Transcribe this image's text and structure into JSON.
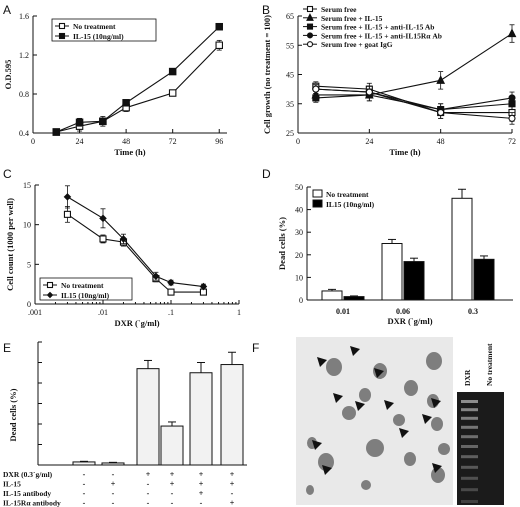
{
  "chart_data": [
    {
      "panel": "A",
      "type": "line",
      "xlabel": "Time (h)",
      "ylabel": "O.D.595",
      "xlim": [
        0,
        100
      ],
      "ylim": [
        0.4,
        1.6
      ],
      "xticks": [
        0,
        24,
        48,
        72,
        96
      ],
      "yticks": [
        0.4,
        0.8,
        1.2,
        1.6
      ],
      "legend": "top-left",
      "series": [
        {
          "name": "No treatment",
          "x": [
            12,
            24,
            36,
            48,
            72,
            96
          ],
          "y": [
            0.41,
            0.47,
            0.52,
            0.66,
            0.81,
            1.3
          ],
          "err": [
            0.03,
            0.05,
            0.05,
            0.04,
            0.03,
            0.05
          ],
          "marker": "open-square"
        },
        {
          "name": "IL-15 (10ng/ml)",
          "x": [
            12,
            24,
            36,
            48,
            72,
            96
          ],
          "y": [
            0.41,
            0.51,
            0.52,
            0.71,
            1.03,
            1.49
          ],
          "err": [
            0.03,
            0.04,
            0.03,
            0.03,
            0.02,
            0.03
          ],
          "marker": "filled-square"
        }
      ]
    },
    {
      "panel": "B",
      "type": "line",
      "xlabel": "Time (h)",
      "ylabel": "Cell growth (no treatment = 100)",
      "xlim": [
        0,
        72
      ],
      "ylim": [
        25,
        65
      ],
      "xticks": [
        0,
        24,
        48,
        72
      ],
      "yticks": [
        25,
        35,
        45,
        55,
        65
      ],
      "legend": "top-left",
      "series": [
        {
          "name": "Serum free",
          "x": [
            6,
            24,
            48,
            72
          ],
          "y": [
            41,
            40,
            32,
            32
          ],
          "err": [
            1.5,
            2,
            2,
            3
          ],
          "marker": "open-square"
        },
        {
          "name": "Serum free + IL-15",
          "x": [
            6,
            24,
            48,
            72
          ],
          "y": [
            38,
            38,
            43,
            59
          ],
          "err": [
            1.5,
            2,
            3,
            3
          ],
          "marker": "filled-triangle"
        },
        {
          "name": "Serum free + IL-15 + anti-IL-15 Ab",
          "x": [
            6,
            24,
            48,
            72
          ],
          "y": [
            37,
            38,
            33,
            35
          ],
          "err": [
            1.5,
            2,
            2,
            2
          ],
          "marker": "filled-square"
        },
        {
          "name": "Serum free + IL-15 + anti-IL15Rα Ab",
          "x": [
            6,
            24,
            48,
            72
          ],
          "y": [
            40,
            39,
            33,
            37
          ],
          "err": [
            1.5,
            2,
            2,
            2
          ],
          "marker": "filled-circle"
        },
        {
          "name": "Serum free + goat IgG",
          "x": [
            6,
            24,
            48,
            72
          ],
          "y": [
            40,
            39,
            32,
            30
          ],
          "err": [
            1.5,
            2,
            2,
            2
          ],
          "marker": "open-circle"
        }
      ]
    },
    {
      "panel": "C",
      "type": "line",
      "xscale": "log",
      "xlabel": "DXR (`g/ml)",
      "ylabel": "Cell count (1000 per well)",
      "xlim": [
        0.001,
        1
      ],
      "ylim": [
        0,
        15
      ],
      "xticklabels": [
        ".001",
        ".01",
        ".1",
        "1"
      ],
      "yticks": [
        0,
        5,
        10,
        15
      ],
      "legend": "bottom-left",
      "series": [
        {
          "name": "No treatment",
          "x": [
            0.003,
            0.01,
            0.02,
            0.06,
            0.1,
            0.3
          ],
          "y": [
            11.3,
            8.2,
            7.8,
            3.2,
            1.5,
            1.5
          ],
          "err": [
            1,
            0.5,
            0.5,
            0.4,
            0.2,
            0.2
          ],
          "marker": "open-square"
        },
        {
          "name": "IL15 (10ng/ml)",
          "x": [
            0.003,
            0.01,
            0.02,
            0.06,
            0.1,
            0.3
          ],
          "y": [
            13.5,
            10.8,
            8.2,
            3.5,
            2.7,
            2.2
          ],
          "err": [
            1.4,
            1.2,
            0.6,
            0.5,
            0.3,
            0.3
          ],
          "marker": "filled-diamond"
        }
      ]
    },
    {
      "panel": "D",
      "type": "bar",
      "xlabel": "DXR (`g/ml)",
      "ylabel": "Dead cells (%)",
      "ylim": [
        0,
        50
      ],
      "yticks": [
        0,
        10,
        20,
        30,
        40,
        50
      ],
      "categories": [
        "0.01",
        "0.06",
        "0.3"
      ],
      "legend": "top-left",
      "series": [
        {
          "name": "No treatment",
          "values": [
            4,
            25,
            45
          ],
          "err": [
            0.7,
            1.8,
            4
          ],
          "fill": "#ffffff"
        },
        {
          "name": "IL15 (10ng/ml)",
          "values": [
            1.5,
            17,
            18
          ],
          "err": [
            0.3,
            1.5,
            1.5
          ],
          "fill": "#000000"
        }
      ]
    },
    {
      "panel": "E",
      "type": "bar",
      "ylabel": "Dead cells (%)",
      "ylim": [
        0,
        60
      ],
      "yticks": [
        0,
        10,
        20,
        30,
        40,
        50,
        60
      ],
      "values": [
        1.5,
        1,
        47,
        19,
        45,
        49
      ],
      "err": [
        0.3,
        0.3,
        4,
        2,
        5,
        6
      ],
      "treatments": [
        {
          "label": "DXR (0.3`g/ml)",
          "signs": [
            "-",
            "-",
            "+",
            "+",
            "+",
            "+"
          ]
        },
        {
          "label": "IL-15",
          "signs": [
            "-",
            "+",
            "-",
            "+",
            "+",
            "+"
          ]
        },
        {
          "label": "IL-15 antibody",
          "signs": [
            "-",
            "-",
            "-",
            "-",
            "+",
            "-"
          ]
        },
        {
          "label": "IL-15Rα antibody",
          "signs": [
            "-",
            "-",
            "-",
            "-",
            "-",
            "+"
          ]
        }
      ]
    }
  ],
  "panel_f": {
    "letter": "F",
    "lane_labels": [
      "DXR",
      "No treatment"
    ]
  },
  "colors": {
    "ink": "#111111",
    "bar_e": "#f2f2f2",
    "micro_bg": "#e9e9e9",
    "cell": "#5a5a5a",
    "gel_bg": "#1b1b1b",
    "band": "#9a9a9a"
  }
}
